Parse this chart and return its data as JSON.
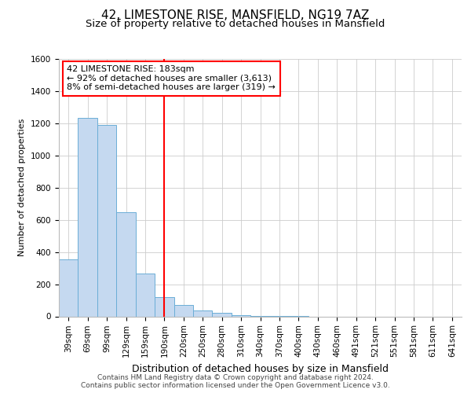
{
  "title1": "42, LIMESTONE RISE, MANSFIELD, NG19 7AZ",
  "title2": "Size of property relative to detached houses in Mansfield",
  "xlabel": "Distribution of detached houses by size in Mansfield",
  "ylabel": "Number of detached properties",
  "categories": [
    "39sqm",
    "69sqm",
    "99sqm",
    "129sqm",
    "159sqm",
    "190sqm",
    "220sqm",
    "250sqm",
    "280sqm",
    "310sqm",
    "340sqm",
    "370sqm",
    "400sqm",
    "430sqm",
    "460sqm",
    "491sqm",
    "521sqm",
    "551sqm",
    "581sqm",
    "611sqm",
    "641sqm"
  ],
  "values": [
    355,
    1235,
    1190,
    645,
    265,
    120,
    70,
    38,
    20,
    8,
    4,
    2,
    1,
    0,
    0,
    0,
    0,
    0,
    0,
    0,
    0
  ],
  "bar_color": "#c5d9f0",
  "bar_edge_color": "#6baed6",
  "red_line_x": 5.0,
  "annotation_text": "42 LIMESTONE RISE: 183sqm\n← 92% of detached houses are smaller (3,613)\n8% of semi-detached houses are larger (319) →",
  "annotation_box_color": "white",
  "annotation_box_edge_color": "red",
  "ylim": [
    0,
    1600
  ],
  "yticks": [
    0,
    200,
    400,
    600,
    800,
    1000,
    1200,
    1400,
    1600
  ],
  "footer1": "Contains HM Land Registry data © Crown copyright and database right 2024.",
  "footer2": "Contains public sector information licensed under the Open Government Licence v3.0.",
  "bg_color": "white",
  "grid_color": "#cccccc",
  "title1_fontsize": 11,
  "title2_fontsize": 9.5,
  "xlabel_fontsize": 9,
  "ylabel_fontsize": 8,
  "tick_fontsize": 7.5,
  "annotation_fontsize": 8,
  "footer_fontsize": 6.5
}
